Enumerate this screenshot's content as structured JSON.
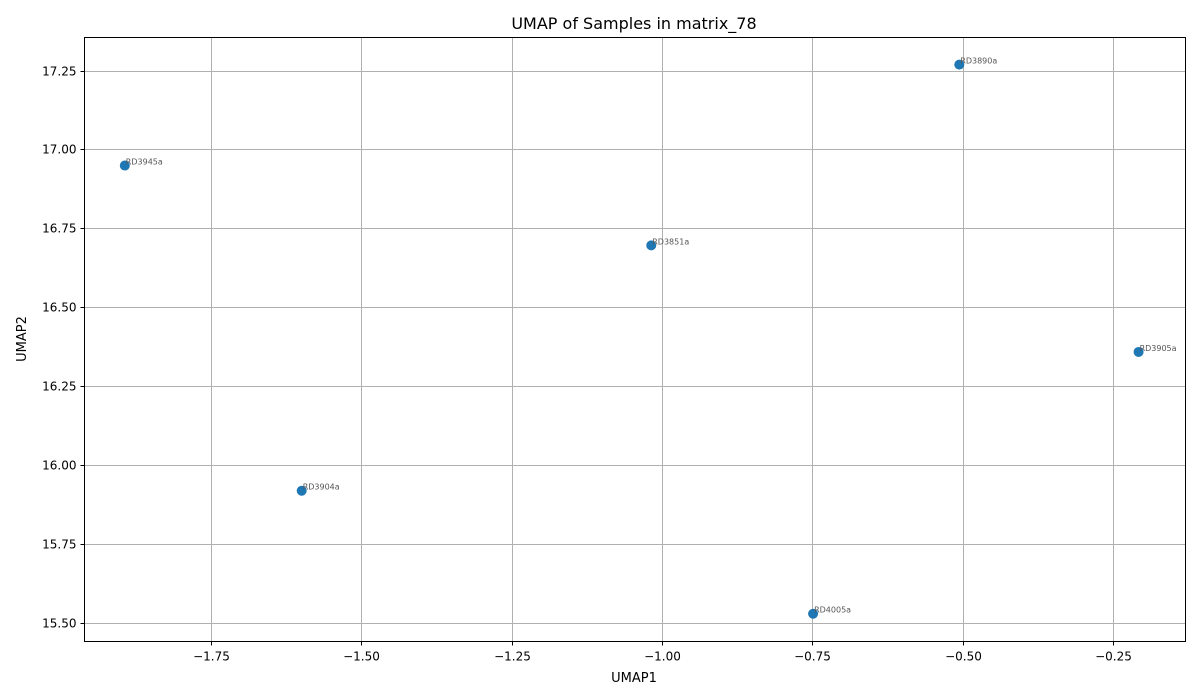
{
  "chart_data": {
    "type": "scatter",
    "title": "UMAP of Samples in matrix_78",
    "xlabel": "UMAP1",
    "ylabel": "UMAP2",
    "xlim": [
      -1.96,
      -0.13
    ],
    "ylim": [
      15.44,
      17.355
    ],
    "grid": true,
    "point_color": "#1f77b4",
    "x_ticks": [
      -1.75,
      -1.5,
      -1.25,
      -1.0,
      -0.75,
      -0.5,
      -0.25
    ],
    "x_tick_labels": [
      "−1.75",
      "−1.50",
      "−1.25",
      "−1.00",
      "−0.75",
      "−0.50",
      "−0.25"
    ],
    "y_ticks": [
      15.5,
      15.75,
      16.0,
      16.25,
      16.5,
      16.75,
      17.0,
      17.25
    ],
    "y_tick_labels": [
      "15.50",
      "15.75",
      "16.00",
      "16.25",
      "16.50",
      "16.75",
      "17.00",
      "17.25"
    ],
    "points": [
      {
        "label": "RD3945a",
        "x": -1.893,
        "y": 16.949
      },
      {
        "label": "RD3904a",
        "x": -1.599,
        "y": 15.918
      },
      {
        "label": "RD3851a",
        "x": -1.018,
        "y": 16.696
      },
      {
        "label": "RD4005a",
        "x": -0.749,
        "y": 15.528
      },
      {
        "label": "RD3890a",
        "x": -0.506,
        "y": 17.269
      },
      {
        "label": "RD3905a",
        "x": -0.208,
        "y": 16.358
      }
    ]
  }
}
